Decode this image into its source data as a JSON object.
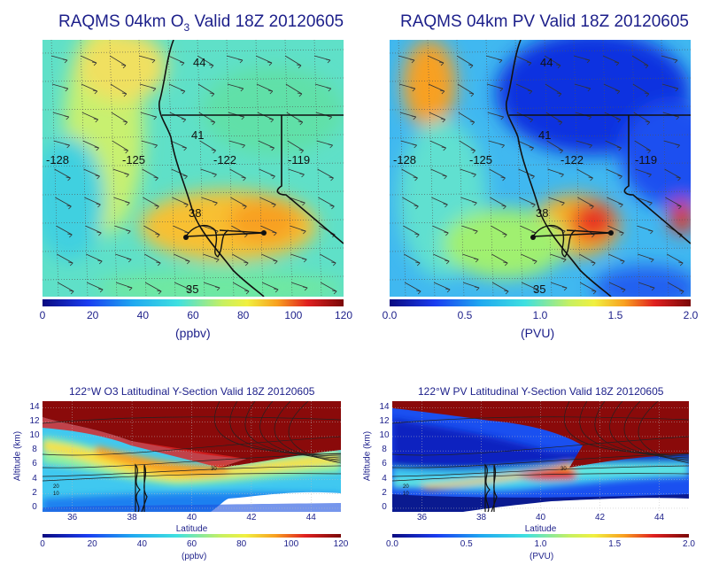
{
  "panels": {
    "o3_map": {
      "title_pre": "RAQMS 04km O",
      "title_sub": "3",
      "title_post": " Valid 18Z 20120605",
      "colorbar_ticks": [
        "0",
        "20",
        "40",
        "60",
        "80",
        "100",
        "120"
      ],
      "units": "(ppbv)"
    },
    "pv_map": {
      "title": "RAQMS 04km PV Valid 18Z 20120605",
      "colorbar_ticks": [
        "0.0",
        "0.5",
        "1.0",
        "1.5",
        "2.0"
      ],
      "units": "(PVU)"
    },
    "o3_section": {
      "title_pre": "122",
      "title_deg": "o",
      "title_mid": "W O",
      "title_sub": "3",
      "title_post": " Latitudinal Y-Section Valid 18Z 20120605",
      "colorbar_ticks": [
        "0",
        "20",
        "40",
        "60",
        "80",
        "100",
        "120"
      ],
      "units": "(ppbv)"
    },
    "pv_section": {
      "title_pre": "122",
      "title_deg": "o",
      "title_post": "W PV Latitudinal Y-Section Valid 18Z 20120605",
      "colorbar_ticks": [
        "0.0",
        "0.5",
        "1.0",
        "1.5",
        "2.0"
      ],
      "units": "(PVU)"
    }
  },
  "map_labels": {
    "lat": [
      "44",
      "41",
      "38",
      "35"
    ],
    "lon": [
      "-128",
      "-125",
      "-122",
      "-119"
    ]
  },
  "section_axes": {
    "xlabel": "Latitude",
    "ylabel": "Altitude (km)",
    "xticks": [
      "36",
      "38",
      "40",
      "42",
      "44"
    ],
    "yticks": [
      "0",
      "2",
      "4",
      "6",
      "8",
      "10",
      "12",
      "14"
    ],
    "contour_labels": [
      "20",
      "10",
      "0",
      "30"
    ]
  },
  "chart_data": [
    {
      "type": "heatmap",
      "title": "RAQMS 04km O3 Valid 18Z 20120605",
      "colorbar_label": "(ppbv)",
      "colorbar_range": [
        0,
        120
      ],
      "colormap": "rainbow",
      "lon_labels": [
        -128,
        -125,
        -122,
        -119
      ],
      "lat_labels": [
        44,
        41,
        38,
        35
      ]
    },
    {
      "type": "heatmap",
      "title": "RAQMS 04km PV Valid 18Z 20120605",
      "colorbar_label": "(PVU)",
      "colorbar_range": [
        0,
        2.0
      ],
      "colormap": "rainbow",
      "lon_labels": [
        -128,
        -125,
        -122,
        -119
      ],
      "lat_labels": [
        44,
        41,
        38,
        35
      ]
    },
    {
      "type": "heatmap",
      "title": "122°W O3 Latitudinal Y-Section Valid 18Z 20120605",
      "xlabel": "Latitude",
      "ylabel": "Altitude (km)",
      "xlim": [
        35,
        45
      ],
      "ylim": [
        0,
        15
      ],
      "colorbar_label": "(ppbv)",
      "colorbar_range": [
        0,
        120
      ]
    },
    {
      "type": "heatmap",
      "title": "122°W PV Latitudinal Y-Section Valid 18Z 20120605",
      "xlabel": "Latitude",
      "ylabel": "Altitude (km)",
      "xlim": [
        35,
        45
      ],
      "ylim": [
        0,
        15
      ],
      "colorbar_label": "(PVU)",
      "colorbar_range": [
        0,
        2.0
      ]
    }
  ],
  "colors": {
    "text": "#1c1f8a",
    "cmap": [
      "#0a0a80",
      "#1a3cf0",
      "#1fa8f0",
      "#3fe0e0",
      "#f0f040",
      "#f8a020",
      "#e02020",
      "#8a0a0a"
    ]
  }
}
